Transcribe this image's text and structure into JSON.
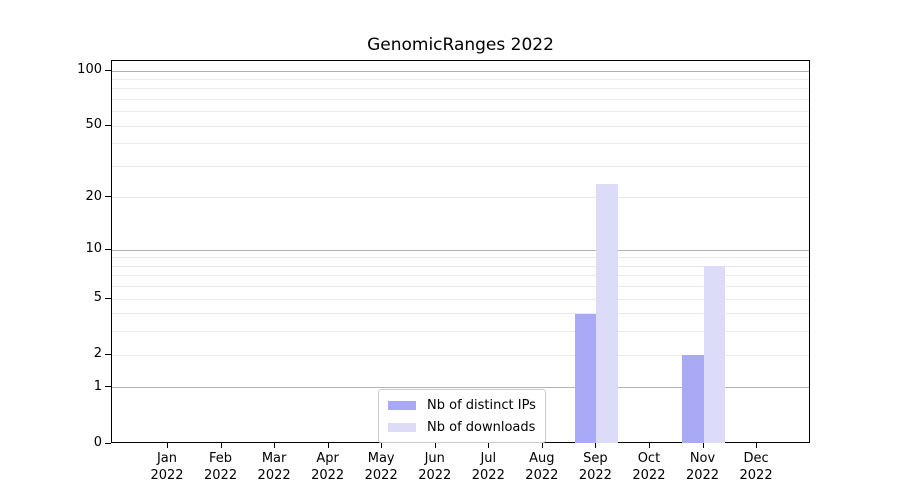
{
  "chart_data": {
    "type": "bar",
    "title": "GenomicRanges 2022",
    "categories": [
      "Jan",
      "Feb",
      "Mar",
      "Apr",
      "May",
      "Jun",
      "Jul",
      "Aug",
      "Sep",
      "Oct",
      "Nov",
      "Dec"
    ],
    "year_label": "2022",
    "series": [
      {
        "name": "Nb of distinct IPs",
        "color": "#a9a9f7",
        "values": [
          0,
          0,
          0,
          0,
          0,
          0,
          0,
          0,
          4,
          0,
          2,
          0
        ]
      },
      {
        "name": "Nb of downloads",
        "color": "#dcdcf9",
        "values": [
          0,
          0,
          0,
          0,
          0,
          0,
          0,
          0,
          24,
          0,
          8,
          0
        ]
      }
    ],
    "xlabel": "",
    "ylabel": "",
    "yscale": "log1p",
    "ylim": [
      0,
      113.4
    ],
    "yticks": [
      0,
      1,
      2,
      5,
      10,
      20,
      50,
      100
    ],
    "gridlines": {
      "major": [
        1,
        10,
        100
      ],
      "minor": [
        2,
        3,
        4,
        5,
        6,
        7,
        8,
        9,
        20,
        30,
        40,
        50,
        60,
        70,
        80,
        90
      ]
    },
    "grid_major_color": "#b3b3b3",
    "grid_minor_color": "#ebebeb",
    "axis_color": "#000000",
    "legend_position": "lower center"
  }
}
